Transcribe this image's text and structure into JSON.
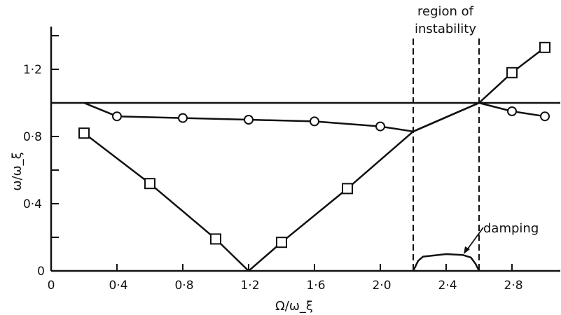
{
  "chart_data": {
    "type": "line",
    "title": "",
    "xlabel": "Ω/ω_ξ",
    "ylabel": "ω/ω_ξ",
    "xlim": [
      0,
      3.1
    ],
    "ylim": [
      0,
      1.45
    ],
    "grid": false,
    "x_ticks": [
      0,
      0.4,
      0.8,
      1.2,
      1.6,
      2.0,
      2.4,
      2.8
    ],
    "x_tick_labels": [
      "0",
      "0·4",
      "0·8",
      "1·2",
      "1·6",
      "2·0",
      "2·4",
      "2·8"
    ],
    "y_ticks": [
      0,
      0.2,
      0.4,
      0.6,
      0.8,
      1.0,
      1.2,
      1.4
    ],
    "y_tick_labels": [
      "0",
      "",
      "0·4",
      "",
      "0·8",
      "",
      "1·2",
      ""
    ],
    "reference_line_y": 1.0,
    "series": [
      {
        "marker": "circle",
        "curve_points": [
          [
            0.2,
            1.0
          ],
          [
            0.4,
            0.92
          ],
          [
            0.8,
            0.91
          ],
          [
            1.2,
            0.9
          ],
          [
            1.6,
            0.89
          ],
          [
            2.0,
            0.86
          ],
          [
            2.2,
            0.83
          ],
          [
            2.6,
            1.0
          ],
          [
            2.8,
            0.95
          ],
          [
            3.0,
            0.92
          ]
        ],
        "marker_x": [
          0.4,
          0.8,
          1.2,
          1.6,
          2.0,
          2.8,
          3.0
        ],
        "marker_y": [
          0.92,
          0.91,
          0.9,
          0.89,
          0.86,
          0.95,
          0.92
        ]
      },
      {
        "marker": "square",
        "curve_points": [
          [
            0.2,
            0.82
          ],
          [
            0.6,
            0.52
          ],
          [
            1.0,
            0.19
          ],
          [
            1.2,
            0.0
          ],
          [
            1.4,
            0.17
          ],
          [
            1.8,
            0.49
          ],
          [
            2.2,
            0.83
          ],
          [
            2.6,
            1.0
          ],
          [
            2.8,
            1.18
          ],
          [
            3.0,
            1.33
          ]
        ],
        "marker_x": [
          0.2,
          0.6,
          1.0,
          1.4,
          1.8,
          2.8,
          3.0
        ],
        "marker_y": [
          0.82,
          0.52,
          0.19,
          0.17,
          0.49,
          1.18,
          1.33
        ]
      },
      {
        "name": "damping",
        "marker": "none",
        "curve_points": [
          [
            2.2,
            0.0
          ],
          [
            2.23,
            0.06
          ],
          [
            2.26,
            0.085
          ],
          [
            2.4,
            0.1
          ],
          [
            2.5,
            0.095
          ],
          [
            2.55,
            0.08
          ],
          [
            2.58,
            0.04
          ],
          [
            2.6,
            0.0
          ]
        ]
      }
    ],
    "instability_region": [
      2.2,
      2.6
    ],
    "annotations": {
      "region_line1": "region of",
      "region_line2": "instability",
      "damping": "damping"
    }
  }
}
